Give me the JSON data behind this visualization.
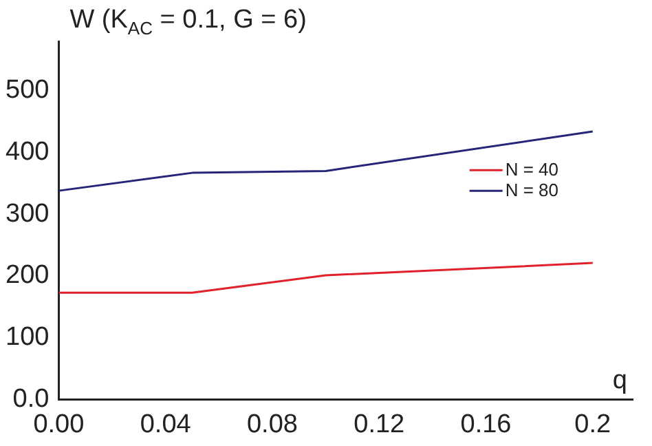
{
  "chart_data": {
    "type": "line",
    "ylabel": "W (K$_{AC}$ = 0.1, G = 6)",
    "xlabel": "q",
    "x": [
      0,
      0.05,
      0.1,
      0.2
    ],
    "series": [
      {
        "name": "N = 40",
        "color": "#e0202a",
        "values": [
          173,
          173,
          201,
          221
        ]
      },
      {
        "name": "N = 80",
        "color": "#25257a",
        "values": [
          338,
          367,
          370,
          434
        ]
      }
    ],
    "xlim": [
      0,
      0.215
    ],
    "xticks": [
      {
        "value": 0,
        "label": "0.00"
      },
      {
        "value": 0.04,
        "label": "0.04"
      },
      {
        "value": 0.08,
        "label": "0.08"
      },
      {
        "value": 0.12,
        "label": "0.12"
      },
      {
        "value": 0.16,
        "label": "0.16"
      },
      {
        "value": 0.2,
        "label": "0.2"
      }
    ],
    "ylim": [
      0,
      580
    ],
    "yticks": [
      {
        "value": 0,
        "label": "0.0"
      },
      100,
      200,
      300,
      400,
      500
    ],
    "grid": false,
    "legend": "right",
    "marker": "none",
    "line_style": "solid"
  }
}
